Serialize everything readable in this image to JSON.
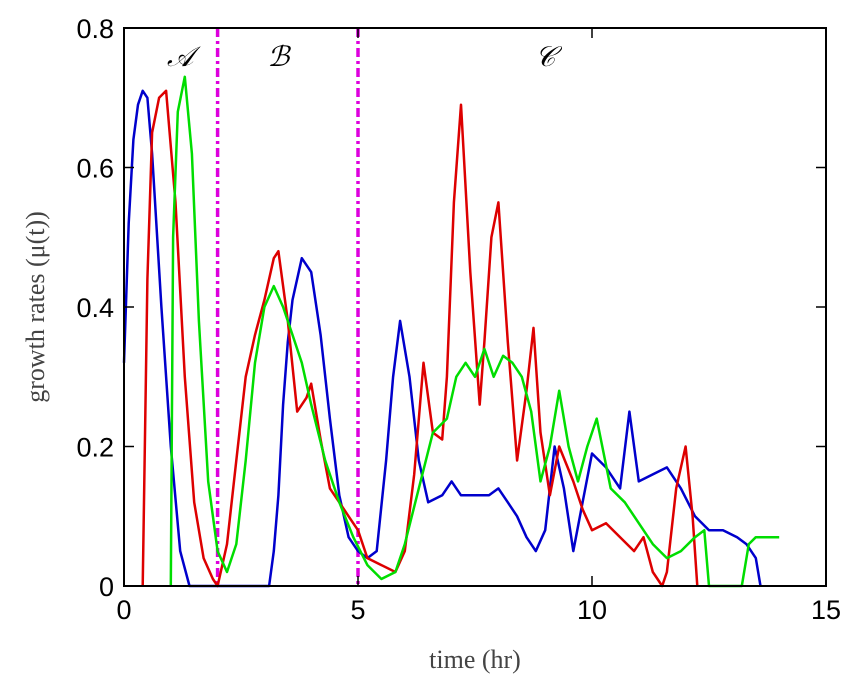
{
  "chart_data": {
    "type": "line",
    "xlabel": "time (hr)",
    "ylabel": "growth rates (μ(t))",
    "xlim": [
      0,
      15
    ],
    "ylim": [
      0,
      0.8
    ],
    "xticks": [
      "0",
      "5",
      "10",
      "15"
    ],
    "yticks": [
      "0",
      "0.2",
      "0.4",
      "0.6",
      "0.8"
    ],
    "grid": false,
    "legend": "none",
    "annotations": [
      {
        "text": "𝒜",
        "x": 1.2,
        "y": 0.76
      },
      {
        "text": "ℬ",
        "x": 3.3,
        "y": 0.76
      },
      {
        "text": "𝒞",
        "x": 9.0,
        "y": 0.76
      }
    ],
    "vlines": [
      {
        "x": 2.0,
        "color": "#dd00dd",
        "style": "dashdot"
      },
      {
        "x": 5.0,
        "color": "#dd00dd",
        "style": "dashdot"
      }
    ],
    "series": [
      {
        "color": "#0000cc",
        "x": [
          0,
          0.1,
          0.2,
          0.3,
          0.4,
          0.5,
          0.6,
          0.8,
          1.0,
          1.2,
          1.4,
          3.1,
          3.2,
          3.3,
          3.4,
          3.5,
          3.6,
          3.8,
          4.0,
          4.2,
          4.4,
          4.6,
          4.8,
          5.0,
          5.2,
          5.4,
          5.6,
          5.75,
          5.9,
          6.1,
          6.3,
          6.5,
          6.8,
          7.0,
          7.2,
          7.5,
          7.8,
          8.0,
          8.2,
          8.4,
          8.6,
          8.8,
          9.0,
          9.2,
          9.4,
          9.6,
          9.8,
          10.0,
          10.3,
          10.6,
          10.8,
          11.0,
          11.3,
          11.6,
          11.9,
          12.2,
          12.5,
          12.8,
          13.1,
          13.3,
          13.5,
          13.6
        ],
        "y": [
          0.32,
          0.52,
          0.64,
          0.69,
          0.71,
          0.7,
          0.62,
          0.4,
          0.2,
          0.05,
          0,
          0,
          0.05,
          0.13,
          0.26,
          0.35,
          0.41,
          0.47,
          0.45,
          0.36,
          0.24,
          0.13,
          0.07,
          0.05,
          0.04,
          0.05,
          0.18,
          0.3,
          0.38,
          0.3,
          0.18,
          0.12,
          0.13,
          0.15,
          0.13,
          0.13,
          0.13,
          0.14,
          0.12,
          0.1,
          0.07,
          0.05,
          0.08,
          0.2,
          0.14,
          0.05,
          0.12,
          0.19,
          0.17,
          0.14,
          0.25,
          0.15,
          0.16,
          0.17,
          0.14,
          0.1,
          0.08,
          0.08,
          0.07,
          0.06,
          0.04,
          0
        ]
      },
      {
        "color": "#dd0000",
        "x": [
          0.4,
          0.5,
          0.6,
          0.75,
          0.9,
          1.1,
          1.3,
          1.5,
          1.7,
          1.9,
          2.0,
          2.2,
          2.4,
          2.6,
          2.8,
          3.0,
          3.2,
          3.3,
          3.5,
          3.7,
          3.9,
          4.0,
          4.2,
          4.4,
          4.6,
          4.8,
          5.0,
          5.2,
          5.5,
          5.8,
          6.0,
          6.2,
          6.4,
          6.6,
          6.8,
          6.9,
          7.05,
          7.2,
          7.4,
          7.6,
          7.7,
          7.85,
          8.0,
          8.2,
          8.4,
          8.6,
          8.75,
          8.9,
          9.1,
          9.3,
          9.6,
          9.8,
          10.0,
          10.3,
          10.6,
          10.9,
          11.1,
          11.3,
          11.5,
          11.6,
          11.8,
          12.0,
          12.15,
          12.25
        ],
        "y": [
          0,
          0.44,
          0.65,
          0.7,
          0.71,
          0.55,
          0.3,
          0.12,
          0.04,
          0.01,
          0,
          0.06,
          0.18,
          0.3,
          0.36,
          0.41,
          0.47,
          0.48,
          0.38,
          0.25,
          0.27,
          0.29,
          0.21,
          0.14,
          0.12,
          0.1,
          0.08,
          0.04,
          0.03,
          0.02,
          0.05,
          0.16,
          0.32,
          0.22,
          0.21,
          0.3,
          0.55,
          0.69,
          0.45,
          0.26,
          0.35,
          0.5,
          0.55,
          0.35,
          0.18,
          0.28,
          0.37,
          0.22,
          0.13,
          0.2,
          0.15,
          0.11,
          0.08,
          0.09,
          0.07,
          0.05,
          0.07,
          0.02,
          0,
          0.02,
          0.14,
          0.2,
          0.1,
          0
        ]
      },
      {
        "color": "#00dd00",
        "x": [
          1.0,
          1.05,
          1.15,
          1.3,
          1.45,
          1.6,
          1.8,
          2.0,
          2.2,
          2.4,
          2.6,
          2.8,
          3.0,
          3.2,
          3.4,
          3.6,
          3.8,
          4.0,
          4.3,
          4.6,
          4.9,
          5.2,
          5.5,
          5.8,
          6.0,
          6.3,
          6.6,
          6.9,
          7.1,
          7.3,
          7.5,
          7.7,
          7.9,
          8.1,
          8.3,
          8.5,
          8.7,
          8.9,
          9.1,
          9.3,
          9.5,
          9.7,
          9.9,
          10.1,
          10.4,
          10.7,
          11.0,
          11.3,
          11.6,
          11.9,
          12.2,
          12.4,
          12.5,
          13.2,
          13.35,
          13.5,
          14.0
        ],
        "y": [
          0,
          0.5,
          0.68,
          0.73,
          0.62,
          0.38,
          0.15,
          0.05,
          0.02,
          0.06,
          0.18,
          0.32,
          0.4,
          0.43,
          0.4,
          0.36,
          0.32,
          0.26,
          0.18,
          0.12,
          0.07,
          0.03,
          0.01,
          0.02,
          0.06,
          0.14,
          0.22,
          0.24,
          0.3,
          0.32,
          0.3,
          0.34,
          0.3,
          0.33,
          0.32,
          0.3,
          0.25,
          0.15,
          0.2,
          0.28,
          0.2,
          0.15,
          0.2,
          0.24,
          0.14,
          0.12,
          0.09,
          0.06,
          0.04,
          0.05,
          0.07,
          0.08,
          0,
          0,
          0.06,
          0.07,
          0.07
        ]
      }
    ]
  }
}
